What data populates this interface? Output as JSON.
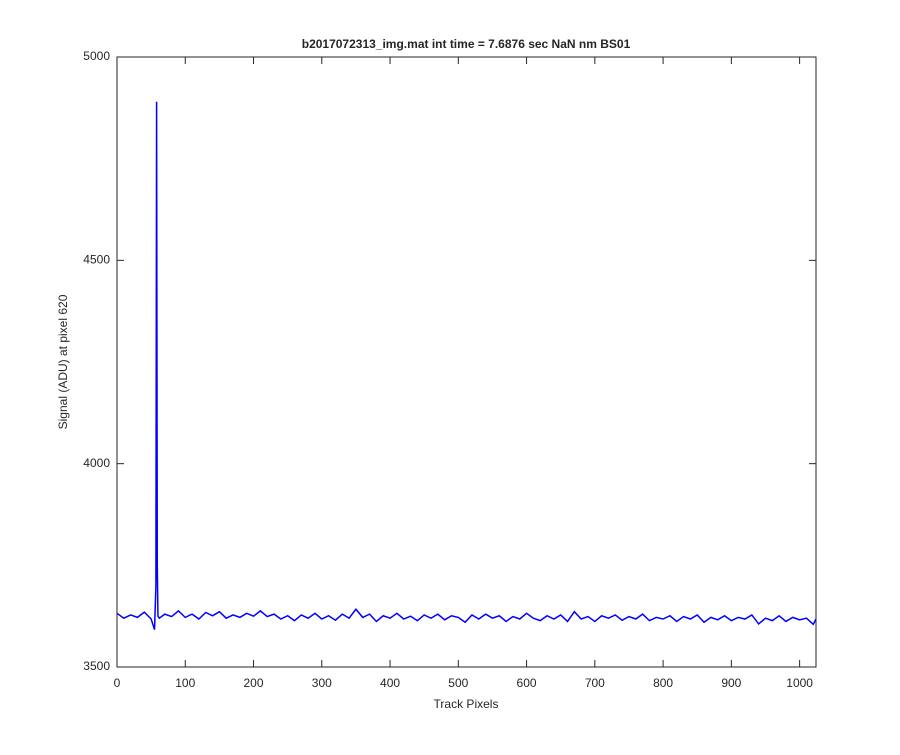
{
  "chart_data": {
    "type": "line",
    "title": "b2017072313_img.mat int time = 7.6876 sec  NaN nm BS01",
    "x_label": "Track Pixels",
    "y_label": "Signal (ADU) at pixel 620",
    "xlim": [
      0,
      1024
    ],
    "ylim": [
      3500,
      5000
    ],
    "xticks": [
      0,
      100,
      200,
      300,
      400,
      500,
      600,
      700,
      800,
      900,
      1000
    ],
    "yticks": [
      3500,
      4000,
      4500,
      5000
    ],
    "grid": false,
    "x": [
      0,
      10,
      20,
      30,
      40,
      50,
      55,
      57,
      58,
      59,
      60,
      62,
      70,
      80,
      90,
      100,
      110,
      120,
      130,
      140,
      150,
      160,
      170,
      180,
      190,
      200,
      210,
      220,
      230,
      240,
      250,
      260,
      270,
      280,
      290,
      300,
      310,
      320,
      330,
      340,
      350,
      360,
      370,
      380,
      390,
      400,
      410,
      420,
      430,
      440,
      450,
      460,
      470,
      480,
      490,
      500,
      510,
      520,
      530,
      540,
      550,
      560,
      570,
      580,
      590,
      600,
      610,
      620,
      630,
      640,
      650,
      660,
      670,
      680,
      690,
      700,
      710,
      720,
      730,
      740,
      750,
      760,
      770,
      780,
      790,
      800,
      810,
      820,
      830,
      840,
      850,
      860,
      870,
      880,
      890,
      900,
      910,
      920,
      930,
      940,
      950,
      960,
      970,
      980,
      990,
      1000,
      1010,
      1020,
      1024
    ],
    "series": [
      {
        "name": "Signal",
        "color": "#0000ff",
        "values": [
          3632,
          3620,
          3628,
          3622,
          3635,
          3618,
          3592,
          3700,
          4890,
          3750,
          3625,
          3620,
          3630,
          3624,
          3638,
          3622,
          3630,
          3618,
          3634,
          3626,
          3636,
          3620,
          3628,
          3622,
          3632,
          3625,
          3638,
          3624,
          3630,
          3618,
          3626,
          3614,
          3628,
          3620,
          3632,
          3618,
          3626,
          3615,
          3630,
          3620,
          3642,
          3622,
          3630,
          3612,
          3626,
          3620,
          3632,
          3618,
          3625,
          3614,
          3628,
          3620,
          3630,
          3616,
          3626,
          3622,
          3610,
          3628,
          3618,
          3630,
          3620,
          3626,
          3612,
          3624,
          3618,
          3632,
          3620,
          3614,
          3626,
          3618,
          3628,
          3612,
          3636,
          3618,
          3624,
          3612,
          3626,
          3620,
          3628,
          3615,
          3624,
          3618,
          3630,
          3614,
          3622,
          3618,
          3626,
          3612,
          3624,
          3618,
          3628,
          3610,
          3622,
          3616,
          3626,
          3614,
          3622,
          3618,
          3628,
          3606,
          3620,
          3614,
          3626,
          3612,
          3622,
          3616,
          3620,
          3605,
          3618
        ]
      }
    ]
  }
}
